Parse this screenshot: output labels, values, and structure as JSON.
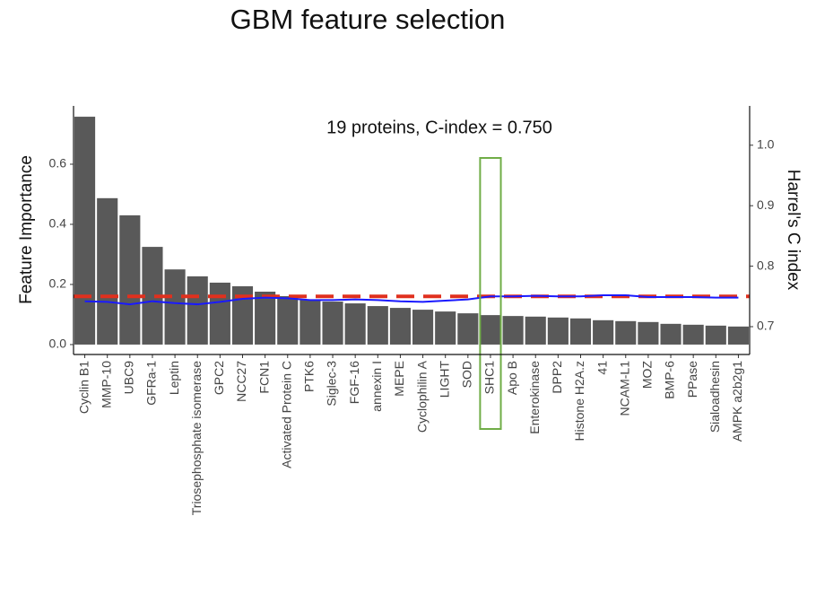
{
  "chart_data": {
    "type": "bar",
    "title": "GBM  feature selection",
    "annotation": "19 proteins, C-index = 0.750",
    "y_label": "Feature Importance",
    "y2_label": "Harrel's C index",
    "categories": [
      "Cyclin B1",
      "MMP-10",
      "UBC9",
      "GFRa-1",
      "Leptin",
      "Triosephosphate isomerase",
      "GPC2",
      "NCC27",
      "FCN1",
      "Activated Protein C",
      "PTK6",
      "Siglec-3",
      "FGF-16",
      "annexin I",
      "MEPE",
      "Cyclophilin A",
      "LIGHT",
      "SOD",
      "SHC1",
      "Apo B",
      "Enterokinase",
      "DPP2",
      "Histone H2A.z",
      "41",
      "NCAM-L1",
      "MOZ",
      "BMP-6",
      "PPase",
      "Sialoadhesin",
      "AMPK a2b2g1"
    ],
    "values": [
      0.758,
      0.487,
      0.43,
      0.325,
      0.25,
      0.227,
      0.206,
      0.194,
      0.176,
      0.161,
      0.149,
      0.143,
      0.137,
      0.128,
      0.122,
      0.116,
      0.11,
      0.104,
      0.098,
      0.095,
      0.093,
      0.09,
      0.087,
      0.081,
      0.078,
      0.075,
      0.069,
      0.066,
      0.063,
      0.06
    ],
    "color": "#595959",
    "line": {
      "axis": "y2",
      "color": "#1a1aff",
      "values": [
        0.742,
        0.741,
        0.737,
        0.742,
        0.739,
        0.737,
        0.741,
        0.746,
        0.748,
        0.747,
        0.744,
        0.744,
        0.745,
        0.744,
        0.742,
        0.741,
        0.743,
        0.745,
        0.75,
        0.75,
        0.751,
        0.75,
        0.75,
        0.752,
        0.752,
        0.749,
        0.749,
        0.749,
        0.748,
        0.748
      ]
    },
    "reference_line": {
      "axis": "y2",
      "value": 0.75,
      "color": "#e0301e"
    },
    "highlight": "SHC1",
    "highlight_color": "#70ad47",
    "ylim": [
      -0.033,
      0.794
    ],
    "yticks": [
      {
        "value": 0,
        "label": "0.0"
      },
      0.2,
      0.4,
      0.6
    ],
    "y2lim": [
      0.654,
      1.065
    ],
    "y2ticks": [
      0.7,
      0.8,
      0.9,
      {
        "value": 1,
        "label": "1.0"
      }
    ]
  }
}
